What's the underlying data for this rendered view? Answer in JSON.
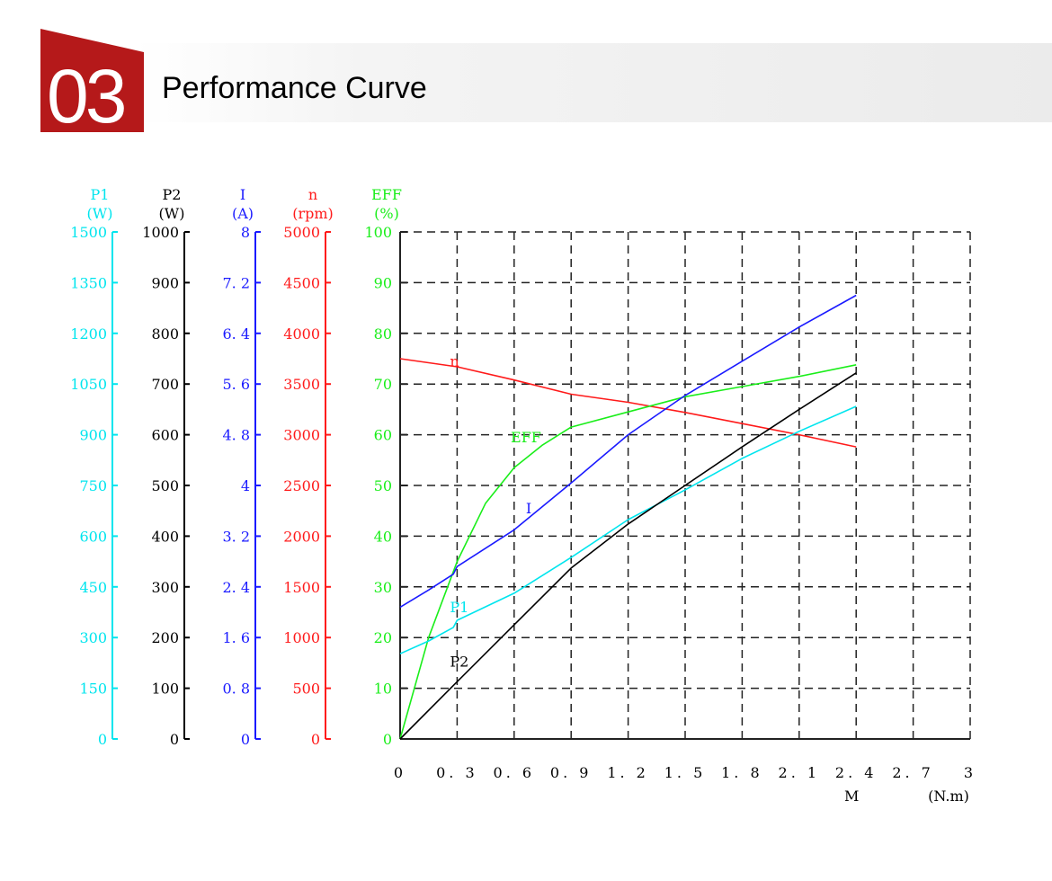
{
  "header": {
    "number": "03",
    "title": "Performance Curve",
    "accent": "#b5191a"
  },
  "chart_data": {
    "type": "line",
    "title": "Performance Curve",
    "xlabel": "M",
    "xunit": "(N.m)",
    "xlim": [
      0,
      3
    ],
    "x_ticks": [
      "0",
      "0.3",
      "0.6",
      "0.9",
      "1.2",
      "1.5",
      "1.8",
      "2.1",
      "2.4",
      "2.7",
      "3"
    ],
    "grid": true,
    "axes": [
      {
        "id": "P1",
        "name": "P1",
        "unit": "(W)",
        "color": "#00e5ee",
        "range": [
          0,
          1500
        ],
        "ticks": [
          "0",
          "150",
          "300",
          "450",
          "600",
          "750",
          "900",
          "1050",
          "1200",
          "1350",
          "1500"
        ]
      },
      {
        "id": "P2",
        "name": "P2",
        "unit": "(W)",
        "color": "#000000",
        "range": [
          0,
          1000
        ],
        "ticks": [
          "0",
          "100",
          "200",
          "300",
          "400",
          "500",
          "600",
          "700",
          "800",
          "900",
          "1000"
        ]
      },
      {
        "id": "I",
        "name": "I",
        "unit": "(A)",
        "color": "#1a1aff",
        "range": [
          0,
          8
        ],
        "ticks": [
          "0",
          "0.8",
          "1.6",
          "2.4",
          "3.2",
          "4",
          "4.8",
          "5.6",
          "6.4",
          "7.2",
          "8"
        ]
      },
      {
        "id": "n",
        "name": "n",
        "unit": "(rpm)",
        "color": "#ff1a1a",
        "range": [
          0,
          5000
        ],
        "ticks": [
          "0",
          "500",
          "1000",
          "1500",
          "2000",
          "2500",
          "3000",
          "3500",
          "4000",
          "4500",
          "5000"
        ]
      },
      {
        "id": "EFF",
        "name": "EFF",
        "unit": "(%)",
        "color": "#1aee1a",
        "range": [
          0,
          100
        ],
        "ticks": [
          "0",
          "10",
          "20",
          "30",
          "40",
          "50",
          "60",
          "70",
          "80",
          "90",
          "100"
        ]
      }
    ],
    "series": [
      {
        "name": "n",
        "axis": "n",
        "color": "#ff1a1a",
        "x": [
          0,
          0.3,
          0.6,
          0.9,
          1.2,
          1.5,
          1.8,
          2.1,
          2.4
        ],
        "values": [
          3750,
          3670,
          3540,
          3400,
          3320,
          3220,
          3110,
          3000,
          2880
        ]
      },
      {
        "name": "EFF",
        "axis": "EFF",
        "color": "#1aee1a",
        "x": [
          0,
          0.15,
          0.3,
          0.45,
          0.6,
          0.75,
          0.9,
          1.2,
          1.5,
          1.8,
          2.1,
          2.4
        ],
        "values": [
          0,
          20,
          35,
          46.5,
          53.5,
          58,
          61.5,
          64.5,
          67.5,
          69.5,
          71.5,
          73.8
        ]
      },
      {
        "name": "I",
        "axis": "I",
        "color": "#1a1aff",
        "x": [
          0,
          0.15,
          0.28,
          0.3,
          0.6,
          0.9,
          1.2,
          1.5,
          1.8,
          2.1,
          2.4
        ],
        "values": [
          2.08,
          2.35,
          2.6,
          2.72,
          3.3,
          4.04,
          4.8,
          5.42,
          5.96,
          6.5,
          7.0
        ]
      },
      {
        "name": "P1",
        "axis": "P1",
        "color": "#00e5ee",
        "x": [
          0,
          0.15,
          0.28,
          0.3,
          0.6,
          0.9,
          1.2,
          1.5,
          1.8,
          2.1,
          2.4
        ],
        "values": [
          252,
          290,
          330,
          351,
          431,
          537,
          649,
          737,
          830,
          910,
          984
        ]
      },
      {
        "name": "P2",
        "axis": "P2",
        "color": "#000000",
        "x": [
          0,
          0.3,
          0.6,
          0.9,
          1.2,
          1.5,
          1.8,
          2.1,
          2.4
        ],
        "values": [
          0,
          113,
          225,
          337,
          424,
          500,
          576,
          650,
          722
        ]
      }
    ],
    "curve_labels": [
      {
        "text": "n",
        "series": "n",
        "x": 0.3,
        "y_eff": 73.5
      },
      {
        "text": "EFF",
        "series": "EFF",
        "x": 0.62,
        "y_eff": 58.5
      },
      {
        "text": "I",
        "series": "I",
        "x": 0.7,
        "y_eff": 44.5
      },
      {
        "text": "P1",
        "series": "P1",
        "x": 0.3,
        "y_eff": 25
      },
      {
        "text": "P2",
        "series": "P2",
        "x": 0.3,
        "y_eff": 14.3
      }
    ]
  }
}
